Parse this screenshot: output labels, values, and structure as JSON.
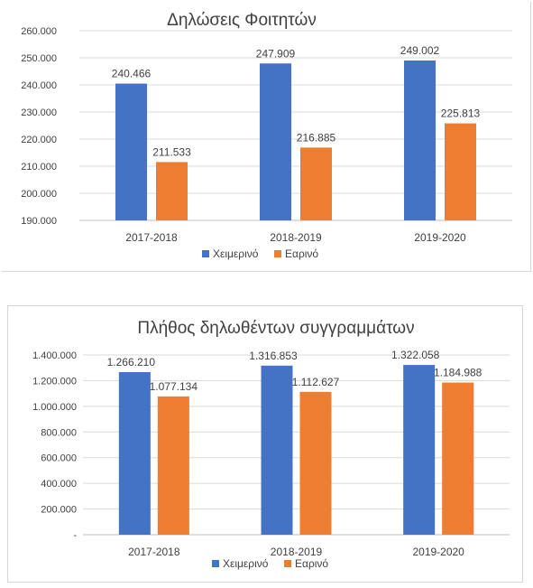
{
  "chart_data": [
    {
      "type": "bar",
      "title": "Δηλώσεις Φοιτητών",
      "categories": [
        "2017-2018",
        "2018-2019",
        "2019-2020"
      ],
      "series": [
        {
          "name": "Χειμερινό",
          "values": [
            240466,
            247909,
            249002
          ],
          "labels": [
            "240.466",
            "247.909",
            "249.002"
          ],
          "color": "#4472C4"
        },
        {
          "name": "Εαρινό",
          "values": [
            211533,
            216885,
            225813
          ],
          "labels": [
            "211.533",
            "216.885",
            "225.813"
          ],
          "color": "#ED7D31"
        }
      ],
      "ylim": [
        190000,
        260000
      ],
      "yticks": [
        190000,
        200000,
        210000,
        220000,
        230000,
        240000,
        250000,
        260000
      ],
      "ytick_labels": [
        "190.000",
        "200.000",
        "210.000",
        "220.000",
        "230.000",
        "240.000",
        "250.000",
        "260.000"
      ],
      "grid": true,
      "legend": "bottom"
    },
    {
      "type": "bar",
      "title": "Πλήθος δηλωθέντων συγγραμμάτων",
      "categories": [
        "2017-2018",
        "2018-2019",
        "2019-2020"
      ],
      "series": [
        {
          "name": "Χειμερινό",
          "values": [
            1266210,
            1316853,
            1322058
          ],
          "labels": [
            "1.266.210",
            "1.316.853",
            "1.322.058"
          ],
          "color": "#4472C4"
        },
        {
          "name": "Εαρινό",
          "values": [
            1077134,
            1112627,
            1184988
          ],
          "labels": [
            "1.077.134",
            "1.112.627",
            "1.184.988"
          ],
          "color": "#ED7D31"
        }
      ],
      "ylim": [
        0,
        1400000
      ],
      "yticks": [
        0,
        200000,
        400000,
        600000,
        800000,
        1000000,
        1200000,
        1400000
      ],
      "ytick_labels": [
        "-",
        "200.000",
        "400.000",
        "600.000",
        "800.000",
        "1.000.000",
        "1.200.000",
        "1.400.000"
      ],
      "grid": true,
      "legend": "bottom"
    }
  ]
}
